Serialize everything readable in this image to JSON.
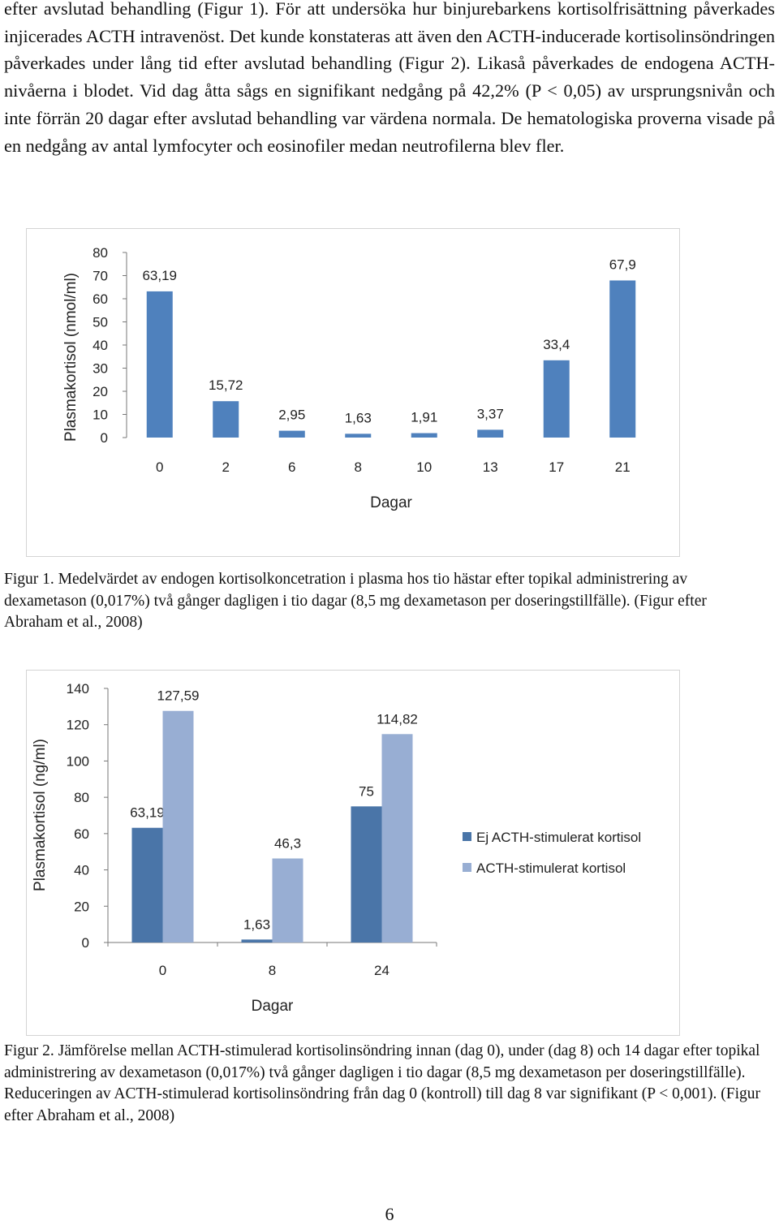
{
  "body_text": "efter avslutad behandling (Figur 1). För att undersöka hur binjurebarkens kortisolfrisättning påverkades injicerades ACTH intravenöst. Det kunde konstateras att även den ACTH-inducerade kortisolinsöndringen påverkades under lång tid efter avslutad behandling (Figur 2). Likaså påverkades de endogena ACTH-nivåerna i blodet. Vid dag åtta sågs en signifikant nedgång på 42,2% (P < 0,05) av ursprungsnivån och inte förrän 20 dagar efter avslutad behandling var värdena normala. De hematologiska proverna visade på en nedgång av antal lymfocyter och eosinofiler medan neutrofilerna blev fler.",
  "figure1": {
    "caption": "Figur 1. Medelvärdet av endogen kortisolkoncetration i plasma hos tio hästar efter topikal administrering av dexametason (0,017%) två gånger dagligen i tio dagar (8,5 mg dexametason per doseringstillfälle). (Figur efter Abraham et al., 2008)"
  },
  "figure2": {
    "caption": "Figur 2. Jämförelse mellan ACTH-stimulerad kortisolinsöndring innan (dag 0), under (dag 8) och 14 dagar efter topikal administrering av dexametason (0,017%) två gånger dagligen i tio dagar  (8,5 mg dexametason per doseringstillfälle). Reduceringen av ACTH-stimulerad kortisolinsöndring från dag 0 (kontroll) till dag 8 var signifikant (P < 0,001). (Figur efter Abraham et al., 2008)"
  },
  "page_number": "6",
  "chart_data": [
    {
      "type": "bar",
      "ylabel": "Plasmakortisol (nmol/ml)",
      "xlabel": "Dagar",
      "categories": [
        "0",
        "2",
        "6",
        "8",
        "10",
        "13",
        "17",
        "21"
      ],
      "values": [
        63.19,
        15.72,
        2.95,
        1.63,
        1.91,
        3.37,
        33.4,
        67.9
      ],
      "value_labels": [
        "63,19",
        "15,72",
        "2,95",
        "1,63",
        "1,91",
        "3,37",
        "33,4",
        "67,9"
      ],
      "yticks": [
        "0",
        "10",
        "20",
        "30",
        "40",
        "50",
        "60",
        "70",
        "80"
      ],
      "ylim": [
        0,
        80
      ],
      "colors": [
        "#4f81bd"
      ],
      "grid": false
    },
    {
      "type": "bar",
      "ylabel": "Plasmakortisol (ng/ml)",
      "xlabel": "Dagar",
      "categories": [
        "0",
        "8",
        "24"
      ],
      "series": [
        {
          "name": "Ej ACTH-stimulerat kortisol",
          "values": [
            63.19,
            1.63,
            75
          ],
          "value_labels": [
            "63,19",
            "1,63",
            "75"
          ],
          "color": "#4a75a8"
        },
        {
          "name": "ACTH-stimulerat kortisol",
          "values": [
            127.59,
            46.3,
            114.82
          ],
          "value_labels": [
            "127,59",
            "46,3",
            "114,82"
          ],
          "color": "#98aed3"
        }
      ],
      "yticks": [
        "0",
        "20",
        "40",
        "60",
        "80",
        "100",
        "120",
        "140"
      ],
      "ylim": [
        0,
        140
      ],
      "legend": "right",
      "grid": false
    }
  ]
}
